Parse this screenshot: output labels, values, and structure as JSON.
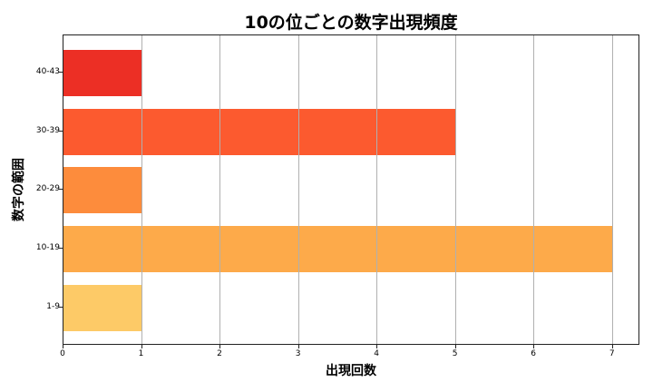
{
  "chart_data": {
    "type": "bar",
    "orientation": "horizontal",
    "title": "10の位ごとの数字出現頻度",
    "xlabel": "出現回数",
    "ylabel": "数字の範囲",
    "categories": [
      "1-9",
      "10-19",
      "20-29",
      "30-39",
      "40-43"
    ],
    "values": [
      1,
      7,
      1,
      5,
      1
    ],
    "colors": [
      "#fdca67",
      "#fdaa4a",
      "#fd8c3c",
      "#fc5a2f",
      "#ec2f25"
    ],
    "xlim": [
      0,
      7.35
    ],
    "xticks": [
      "0",
      "1",
      "2",
      "3",
      "4",
      "5",
      "6",
      "7"
    ],
    "grid": "x-axis vertical lines",
    "legend": "none"
  }
}
